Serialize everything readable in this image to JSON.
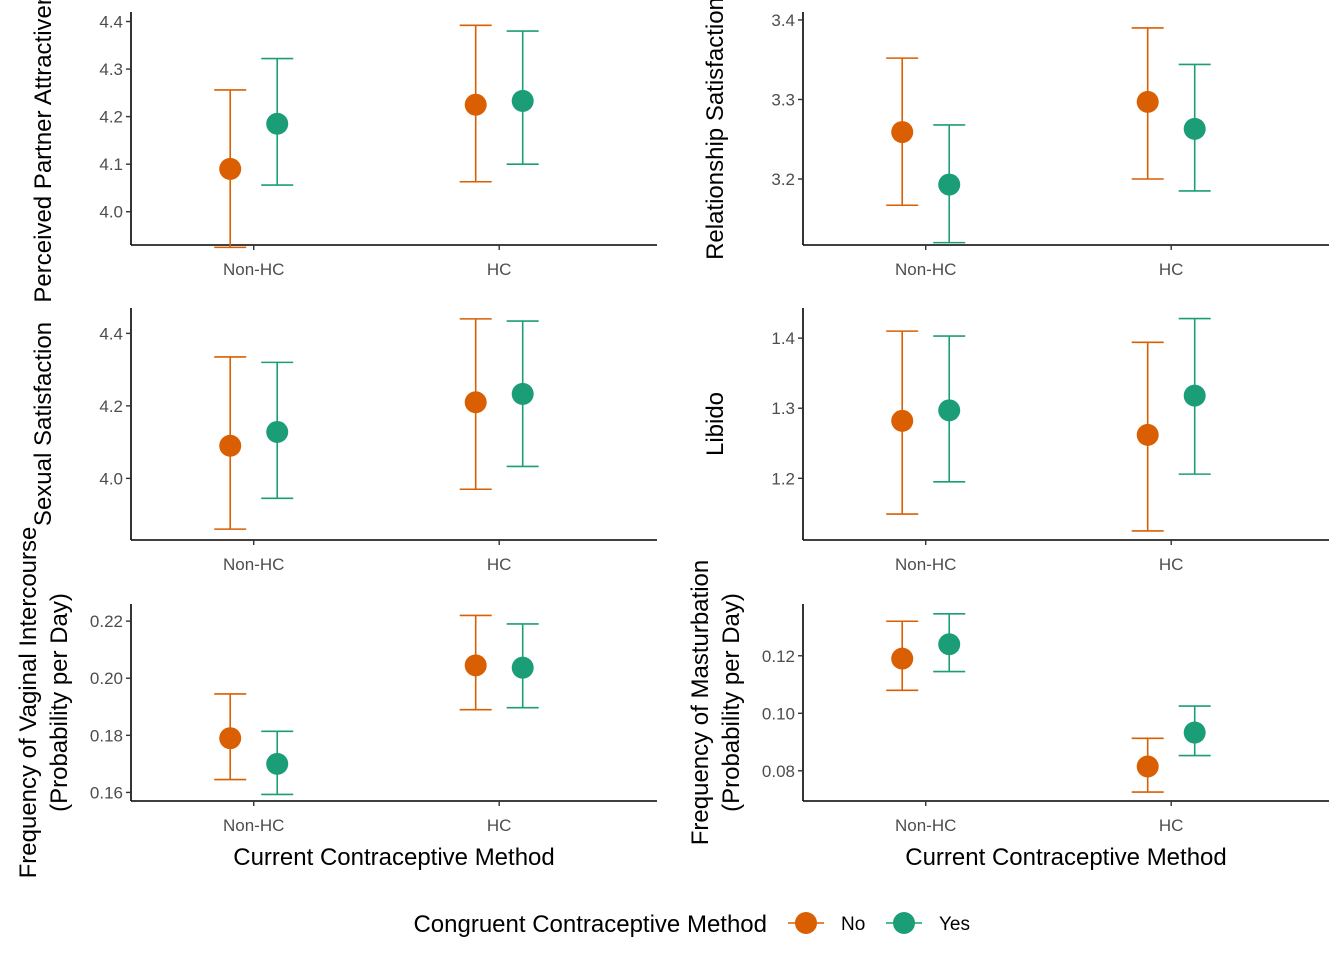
{
  "colors": {
    "No": "#D95F02",
    "Yes": "#1B9E77",
    "axis": "#000000",
    "tick_text": "#4d4d4d"
  },
  "legend": {
    "title": "Congruent Contraceptive Method",
    "placement": "bottom",
    "items": [
      "No",
      "Yes"
    ]
  },
  "chart_data": [
    {
      "type": "scatter",
      "subtype": "pointrange",
      "panel": "top-left",
      "categories": [
        "Non-HC",
        "HC"
      ],
      "ylabel": "Perceived Partner Attractiveness",
      "xlabel": "",
      "ylim": [
        3.93,
        4.42
      ],
      "yticks": [
        4.0,
        4.1,
        4.2,
        4.3,
        4.4
      ],
      "ytick_labels": [
        "4.0",
        "4.1",
        "4.2",
        "4.3",
        "4.4"
      ],
      "series": [
        {
          "name": "No",
          "values": [
            4.09,
            4.225
          ],
          "lower": [
            3.925,
            4.063
          ],
          "upper": [
            4.256,
            4.392
          ]
        },
        {
          "name": "Yes",
          "values": [
            4.185,
            4.233
          ],
          "lower": [
            4.056,
            4.1
          ],
          "upper": [
            4.322,
            4.38
          ]
        }
      ]
    },
    {
      "type": "scatter",
      "subtype": "pointrange",
      "panel": "top-right",
      "categories": [
        "Non-HC",
        "HC"
      ],
      "ylabel": "Relationship Satisfaction",
      "xlabel": "",
      "ylim": [
        3.117,
        3.41
      ],
      "yticks": [
        3.2,
        3.3,
        3.4
      ],
      "ytick_labels": [
        "3.2",
        "3.3",
        "3.4"
      ],
      "series": [
        {
          "name": "No",
          "values": [
            3.259,
            3.297
          ],
          "lower": [
            3.167,
            3.2
          ],
          "upper": [
            3.352,
            3.39
          ]
        },
        {
          "name": "Yes",
          "values": [
            3.193,
            3.263
          ],
          "lower": [
            3.12,
            3.185
          ],
          "upper": [
            3.268,
            3.344
          ]
        }
      ]
    },
    {
      "type": "scatter",
      "subtype": "pointrange",
      "panel": "middle-left",
      "categories": [
        "Non-HC",
        "HC"
      ],
      "ylabel": "Sexual Satisfaction",
      "xlabel": "",
      "ylim": [
        3.83,
        4.47
      ],
      "yticks": [
        4.0,
        4.2,
        4.4
      ],
      "ytick_labels": [
        "4.0",
        "4.2",
        "4.4"
      ],
      "series": [
        {
          "name": "No",
          "values": [
            4.09,
            4.21
          ],
          "lower": [
            3.86,
            3.97
          ],
          "upper": [
            4.335,
            4.44
          ]
        },
        {
          "name": "Yes",
          "values": [
            4.128,
            4.233
          ],
          "lower": [
            3.945,
            4.033
          ],
          "upper": [
            4.32,
            4.434
          ]
        }
      ]
    },
    {
      "type": "scatter",
      "subtype": "pointrange",
      "panel": "middle-right",
      "categories": [
        "Non-HC",
        "HC"
      ],
      "ylabel": "Libido",
      "xlabel": "",
      "ylim": [
        1.112,
        1.443
      ],
      "yticks": [
        1.2,
        1.3,
        1.4
      ],
      "ytick_labels": [
        "1.2",
        "1.3",
        "1.4"
      ],
      "series": [
        {
          "name": "No",
          "values": [
            1.282,
            1.262
          ],
          "lower": [
            1.149,
            1.125
          ],
          "upper": [
            1.41,
            1.394
          ]
        },
        {
          "name": "Yes",
          "values": [
            1.297,
            1.318
          ],
          "lower": [
            1.195,
            1.206
          ],
          "upper": [
            1.403,
            1.428
          ]
        }
      ]
    },
    {
      "type": "scatter",
      "subtype": "pointrange",
      "panel": "bottom-left",
      "categories": [
        "Non-HC",
        "HC"
      ],
      "ylabel": [
        "Frequency of Vaginal Intercourse",
        "(Probability per Day)"
      ],
      "xlabel": "Current Contraceptive Method",
      "ylim": [
        0.157,
        0.226
      ],
      "yticks": [
        0.16,
        0.18,
        0.2,
        0.22
      ],
      "ytick_labels": [
        "0.16",
        "0.18",
        "0.20",
        "0.22"
      ],
      "series": [
        {
          "name": "No",
          "values": [
            0.179,
            0.2045
          ],
          "lower": [
            0.1645,
            0.189
          ],
          "upper": [
            0.1945,
            0.222
          ]
        },
        {
          "name": "Yes",
          "values": [
            0.17,
            0.2037
          ],
          "lower": [
            0.1593,
            0.1897
          ],
          "upper": [
            0.1814,
            0.219
          ]
        }
      ]
    },
    {
      "type": "scatter",
      "subtype": "pointrange",
      "panel": "bottom-right",
      "categories": [
        "Non-HC",
        "HC"
      ],
      "ylabel": [
        "Frequency of Masturbation",
        "(Probability per Day)"
      ],
      "xlabel": "Current Contraceptive Method",
      "ylim": [
        0.0695,
        0.138
      ],
      "yticks": [
        0.08,
        0.1,
        0.12
      ],
      "ytick_labels": [
        "0.08",
        "0.10",
        "0.12"
      ],
      "series": [
        {
          "name": "No",
          "values": [
            0.119,
            0.0815
          ],
          "lower": [
            0.108,
            0.0726
          ],
          "upper": [
            0.132,
            0.0913
          ]
        },
        {
          "name": "Yes",
          "values": [
            0.124,
            0.0933
          ],
          "lower": [
            0.1145,
            0.0853
          ],
          "upper": [
            0.1346,
            0.1025
          ]
        }
      ]
    }
  ]
}
